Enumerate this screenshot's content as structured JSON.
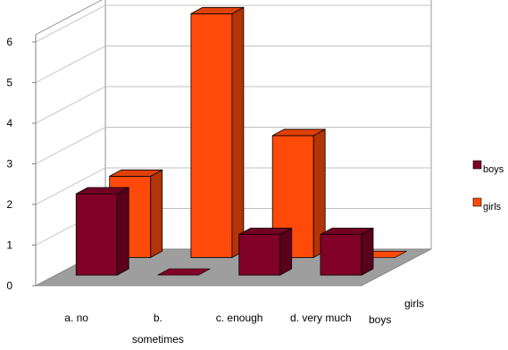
{
  "chart_data": {
    "type": "bar",
    "subtype": "3d-clustered-column",
    "title": "",
    "xlabel": "",
    "ylabel": "",
    "categories": [
      "a. no",
      "b. sometimes",
      "c. enough",
      "d. very much"
    ],
    "category_label_lines": [
      [
        "a. no"
      ],
      [
        "b.",
        "sometimes"
      ],
      [
        "c. enough"
      ],
      [
        "d. very much"
      ]
    ],
    "depth_labels": [
      "boys",
      "girls"
    ],
    "series": [
      {
        "name": "boys",
        "values": [
          2,
          0,
          1,
          1
        ],
        "color": "#800028"
      },
      {
        "name": "girls",
        "values": [
          2,
          6,
          3,
          0
        ],
        "color": "#FF4A0A"
      }
    ],
    "ylim": [
      0,
      6
    ],
    "yticks": [
      "0",
      "1",
      "2",
      "3",
      "4",
      "5",
      "6"
    ],
    "grid": true,
    "legend_position": "right",
    "colors": {
      "wall": "#ffffff",
      "gridline": "#c0c0c0",
      "floor": "#9e9e9e",
      "axis": "#808080"
    }
  }
}
